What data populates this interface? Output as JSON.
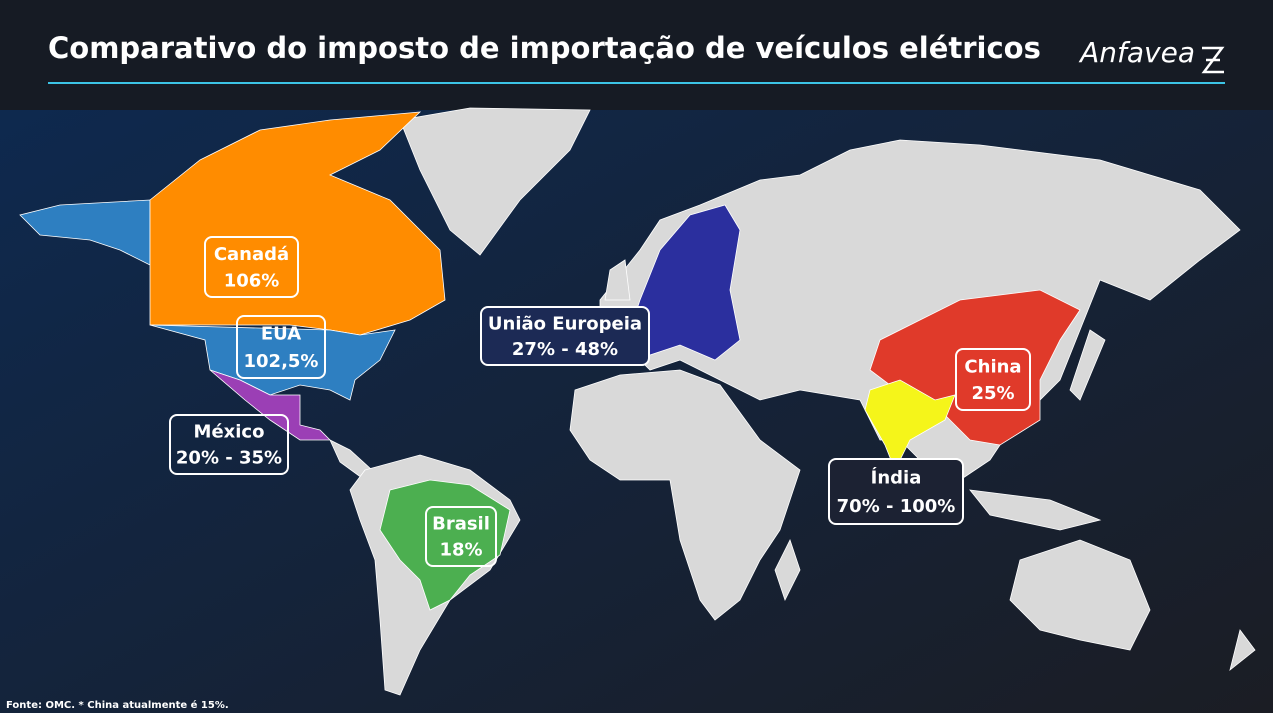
{
  "header": {
    "title": "Comparativo do imposto de importação de veículos elétricos",
    "logo": "Anfavea"
  },
  "regions": [
    {
      "name": "Canadá",
      "rate": "106%"
    },
    {
      "name": "EUA",
      "rate": "102,5%"
    },
    {
      "name": "México",
      "rate": "20% - 35%"
    },
    {
      "name": "Brasil",
      "rate": "18%"
    },
    {
      "name": "União Europeia",
      "rate": "27% - 48%"
    },
    {
      "name": "China",
      "rate": "25%"
    },
    {
      "name": "Índia",
      "rate": "70% - 100%"
    }
  ],
  "footnote": "Fonte: OMC. * China atualmente é 15%."
}
